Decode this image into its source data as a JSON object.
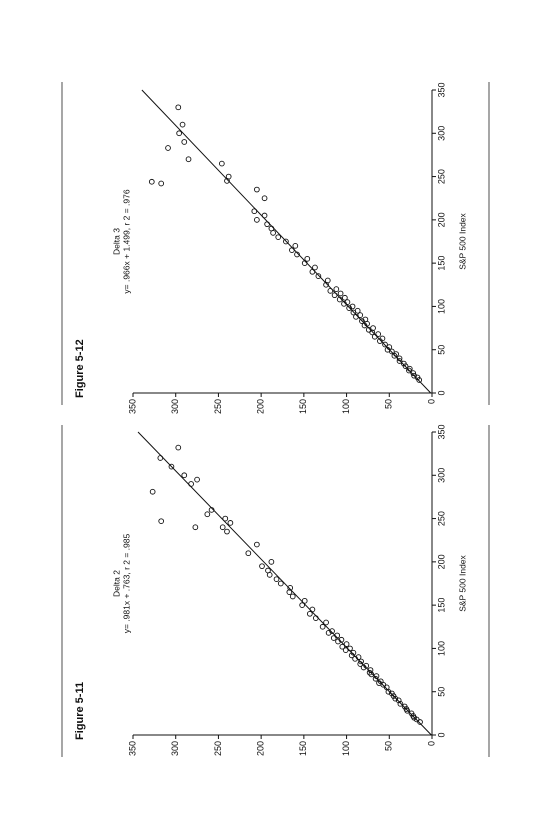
{
  "chart_data": [
    {
      "type": "scatter",
      "title": "Figure 5-11",
      "subtitle": "Delta 2",
      "equation": "y= .981x + .763, r 2 = .985",
      "x_label": "S&P 500 Index",
      "fit": {
        "slope": 0.981,
        "intercept": 0.763
      },
      "x": [
        15,
        18,
        20,
        22,
        25,
        28,
        30,
        33,
        36,
        40,
        42,
        45,
        48,
        50,
        55,
        58,
        60,
        62,
        65,
        68,
        70,
        72,
        75,
        78,
        80,
        82,
        85,
        88,
        90,
        92,
        95,
        98,
        100,
        102,
        105,
        108,
        110,
        112,
        115,
        118,
        120,
        125,
        130,
        135,
        140,
        145,
        150,
        155,
        160,
        165,
        170,
        175,
        180,
        185,
        190,
        195,
        200,
        210,
        220,
        235,
        240,
        245,
        250,
        255,
        260,
        281,
        247,
        332,
        240,
        300,
        310,
        290,
        295,
        320
      ],
      "values": [
        14,
        18,
        21,
        22,
        24,
        29,
        30,
        32,
        37,
        39,
        43,
        45,
        47,
        51,
        53,
        57,
        62,
        60,
        66,
        65,
        71,
        73,
        72,
        80,
        77,
        84,
        83,
        90,
        86,
        94,
        92,
        101,
        96,
        105,
        100,
        110,
        106,
        115,
        111,
        121,
        117,
        128,
        124,
        136,
        143,
        140,
        152,
        149,
        163,
        167,
        166,
        177,
        182,
        190,
        192,
        199,
        188,
        215,
        205,
        240,
        245,
        236,
        242,
        263,
        258,
        327,
        317,
        297,
        277,
        290,
        305,
        282,
        275,
        318
      ],
      "color": "#111111",
      "xlim": [
        0,
        350
      ],
      "ylim": [
        0,
        350
      ],
      "xticks": [
        0,
        50,
        100,
        150,
        200,
        250,
        300,
        350
      ],
      "yticks": [
        0,
        50,
        100,
        150,
        200,
        250,
        300,
        350
      ]
    },
    {
      "type": "scatter",
      "title": "Figure 5-12",
      "subtitle": "Delta 3",
      "equation": "y= .966x + 1.499, r 2 = .976",
      "x_label": "S&P 500 Index",
      "fit": {
        "slope": 0.966,
        "intercept": 1.499
      },
      "x": [
        15,
        18,
        20,
        23,
        26,
        28,
        31,
        34,
        37,
        40,
        43,
        45,
        48,
        50,
        53,
        56,
        60,
        63,
        65,
        68,
        70,
        73,
        75,
        78,
        80,
        83,
        85,
        88,
        90,
        93,
        95,
        98,
        100,
        103,
        105,
        108,
        110,
        113,
        115,
        118,
        120,
        125,
        130,
        135,
        140,
        145,
        150,
        155,
        160,
        165,
        170,
        175,
        180,
        185,
        190,
        195,
        200,
        205,
        210,
        225,
        235,
        245,
        250,
        265,
        244,
        242,
        283,
        300,
        310,
        330,
        290,
        270
      ],
      "values": [
        15,
        17,
        21,
        22,
        27,
        26,
        31,
        33,
        38,
        38,
        44,
        42,
        47,
        52,
        50,
        55,
        61,
        58,
        67,
        63,
        70,
        74,
        69,
        79,
        76,
        82,
        78,
        89,
        84,
        92,
        87,
        97,
        93,
        103,
        99,
        108,
        102,
        114,
        107,
        119,
        112,
        124,
        122,
        133,
        140,
        137,
        149,
        146,
        158,
        164,
        160,
        171,
        180,
        186,
        188,
        193,
        205,
        196,
        208,
        196,
        205,
        240,
        238,
        246,
        328,
        317,
        309,
        296,
        292,
        297,
        290,
        285
      ],
      "color": "#111111",
      "xlim": [
        0,
        350
      ],
      "ylim": [
        0,
        350
      ],
      "xticks": [
        0,
        50,
        100,
        150,
        200,
        250,
        300,
        350
      ],
      "yticks": [
        0,
        50,
        100,
        150,
        200,
        250,
        300,
        350
      ]
    }
  ]
}
